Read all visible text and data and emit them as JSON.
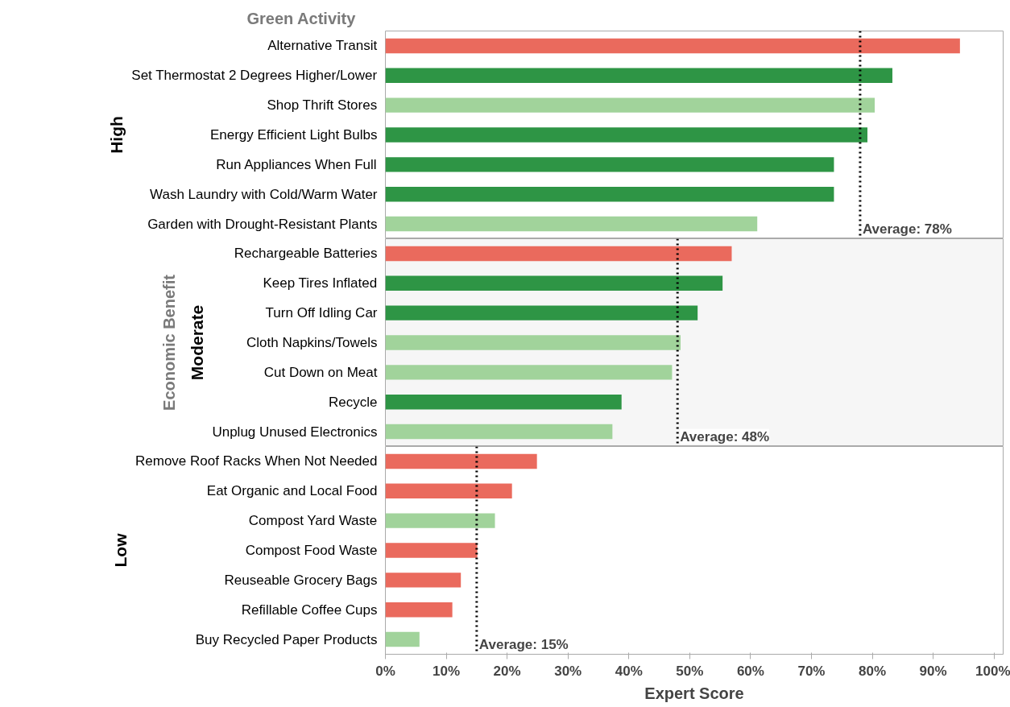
{
  "chart_data": [
    {
      "type": "bar",
      "orientation": "horizontal",
      "title": "High",
      "annotations": [
        "Green Activity"
      ],
      "categories": [
        "Alternative Transit",
        "Set Thermostat 2 Degrees Higher/Lower",
        "Shop Thrift Stores",
        "Energy Efficient Light Bulbs",
        "Run Appliances When Full",
        "Wash Laundry with Cold/Warm Water",
        "Garden with Drought-Resistant Plants"
      ],
      "values": [
        94.4,
        83.3,
        80.4,
        79.2,
        73.7,
        73.7,
        61.1
      ],
      "colors": [
        "#ea6a5d",
        "#2e9545",
        "#a1d39b",
        "#2e9545",
        "#2e9545",
        "#2e9545",
        "#a1d39b"
      ],
      "xlim": [
        0,
        101.5
      ],
      "tick_labels": "y",
      "ref_lines": [
        {
          "axis": "x",
          "value": 78,
          "label": "Average: 78%",
          "color": "#000000",
          "line_style": "dotted"
        }
      ]
    },
    {
      "type": "bar",
      "orientation": "horizontal",
      "title": "Moderate",
      "ylabel": "Economic Benefit",
      "categories": [
        "Rechargeable Batteries",
        "Keep Tires Inflated",
        "Turn Off Idling Car",
        "Cloth Napkins/Towels",
        "Cut Down on Meat",
        "Recycle",
        "Unplug Unused Electronics"
      ],
      "values": [
        56.9,
        55.4,
        51.3,
        48.5,
        47.1,
        38.8,
        37.3
      ],
      "colors": [
        "#ea6a5d",
        "#2e9545",
        "#2e9545",
        "#a1d39b",
        "#a1d39b",
        "#2e9545",
        "#a1d39b"
      ],
      "xlim": [
        0,
        101.5
      ],
      "tick_labels": "y",
      "ref_lines": [
        {
          "axis": "x",
          "value": 48,
          "label": "Average: 48%",
          "color": "#000000",
          "line_style": "dotted"
        }
      ]
    },
    {
      "type": "bar",
      "orientation": "horizontal",
      "title": "Low",
      "xlabel": "Expert Score",
      "categories": [
        "Remove Roof Racks When Not Needed",
        "Eat Organic and Local Food",
        "Compost Yard Waste",
        "Compost Food Waste",
        "Reuseable Grocery Bags",
        "Refillable Coffee Cups",
        "Buy Recycled Paper Products"
      ],
      "values": [
        24.9,
        20.8,
        18.0,
        15.1,
        12.4,
        11.0,
        5.6
      ],
      "colors": [
        "#ea6a5d",
        "#ea6a5d",
        "#a1d39b",
        "#ea6a5d",
        "#ea6a5d",
        "#ea6a5d",
        "#a1d39b"
      ],
      "xlim": [
        0,
        101.5
      ],
      "xticks": [
        {
          "value": 0,
          "label": "0%"
        },
        {
          "value": 10,
          "label": "10%"
        },
        {
          "value": 20,
          "label": "20%"
        },
        {
          "value": 30,
          "label": "30%"
        },
        {
          "value": 40,
          "label": "40%"
        },
        {
          "value": 50,
          "label": "50%"
        },
        {
          "value": 60,
          "label": "60%"
        },
        {
          "value": 70,
          "label": "70%"
        },
        {
          "value": 80,
          "label": "80%"
        },
        {
          "value": 90,
          "label": "90%"
        },
        {
          "value": 100,
          "label": "100%"
        }
      ],
      "ref_lines": [
        {
          "axis": "x",
          "value": 15,
          "label": "Average: 15%",
          "color": "#000000",
          "line_style": "dotted"
        }
      ]
    }
  ]
}
